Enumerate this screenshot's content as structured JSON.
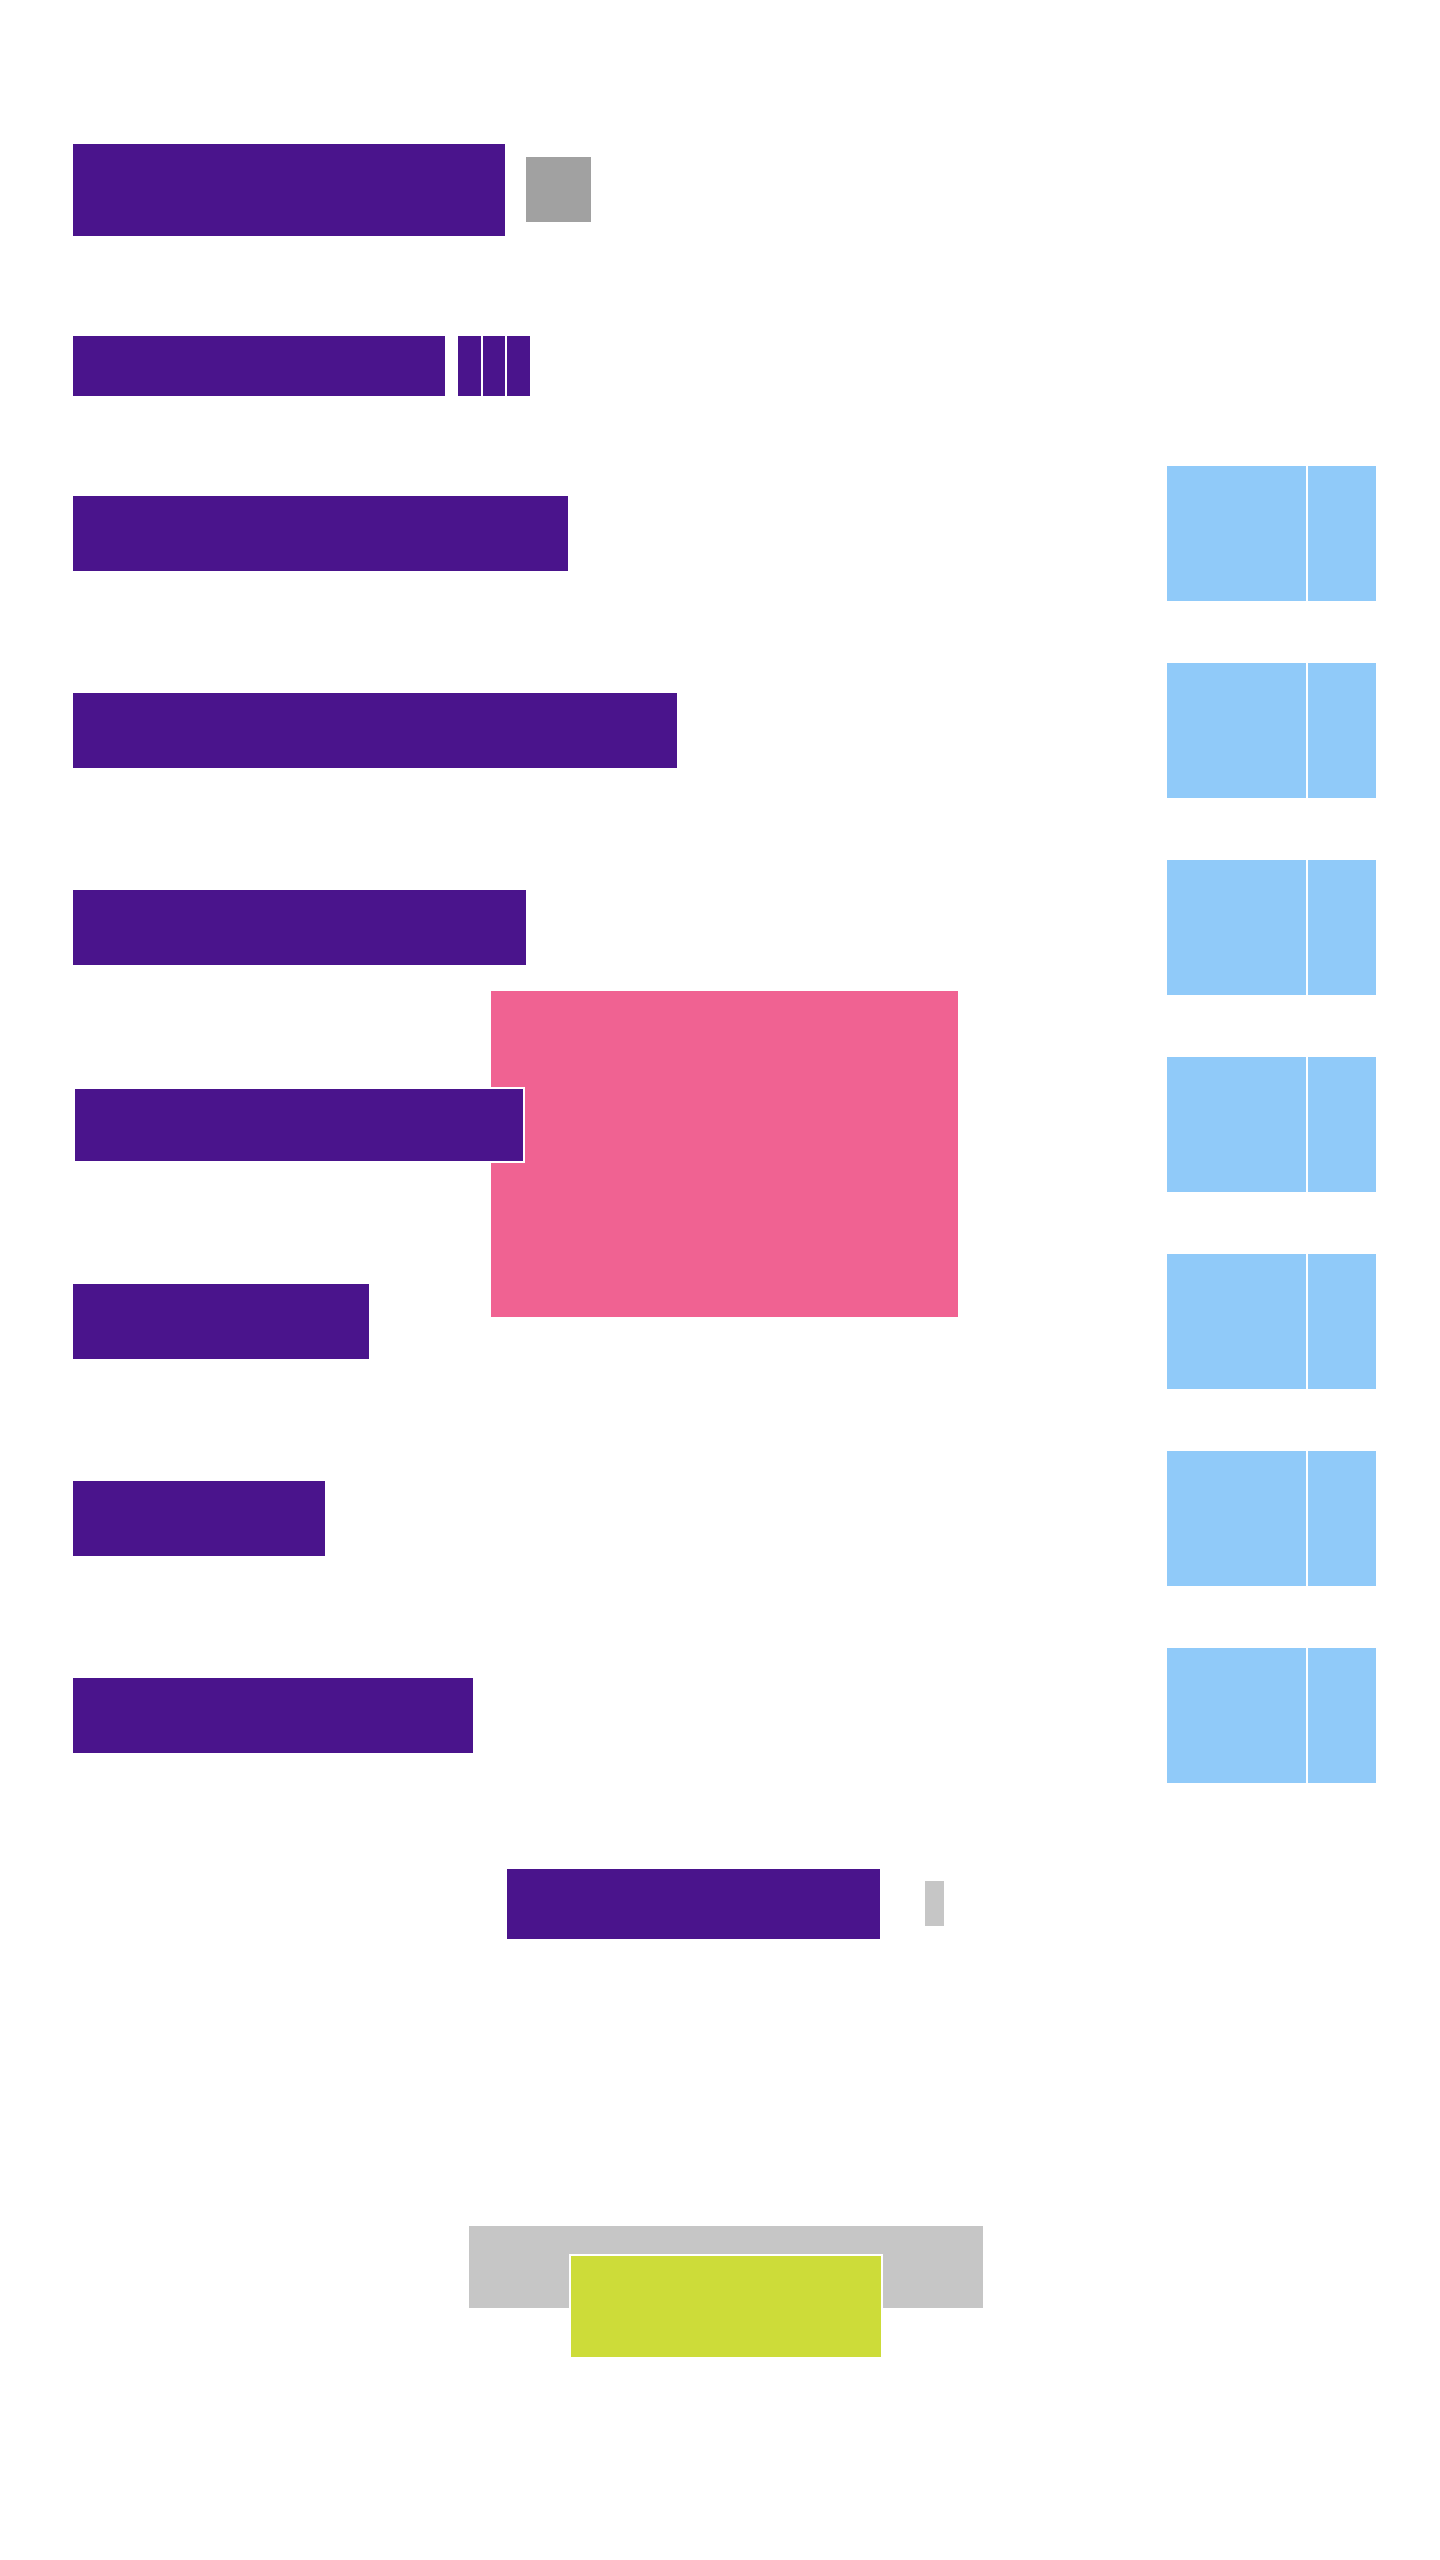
{
  "header": {
    "title": "",
    "badge": "",
    "subtitle": ""
  },
  "list": {
    "items": [
      {
        "label": "",
        "thumb_a": "",
        "thumb_b": ""
      },
      {
        "label": "",
        "thumb_a": "",
        "thumb_b": ""
      },
      {
        "label": "",
        "thumb_a": "",
        "thumb_b": ""
      },
      {
        "label": "",
        "thumb_a": "",
        "thumb_b": ""
      },
      {
        "label": "",
        "thumb_a": "",
        "thumb_b": ""
      },
      {
        "label": "",
        "thumb_a": "",
        "thumb_b": ""
      },
      {
        "label": "",
        "thumb_a": "",
        "thumb_b": ""
      }
    ]
  },
  "overlay": {
    "content": ""
  },
  "footer": {
    "link_label": "",
    "button_label": ""
  },
  "colors": {
    "primary": "#4a148c",
    "tile": "#90caf9",
    "overlay": "#f06292",
    "action": "#cddc39",
    "neutral": "#c6c6c6",
    "neutral_dark": "#a1a1a1"
  }
}
